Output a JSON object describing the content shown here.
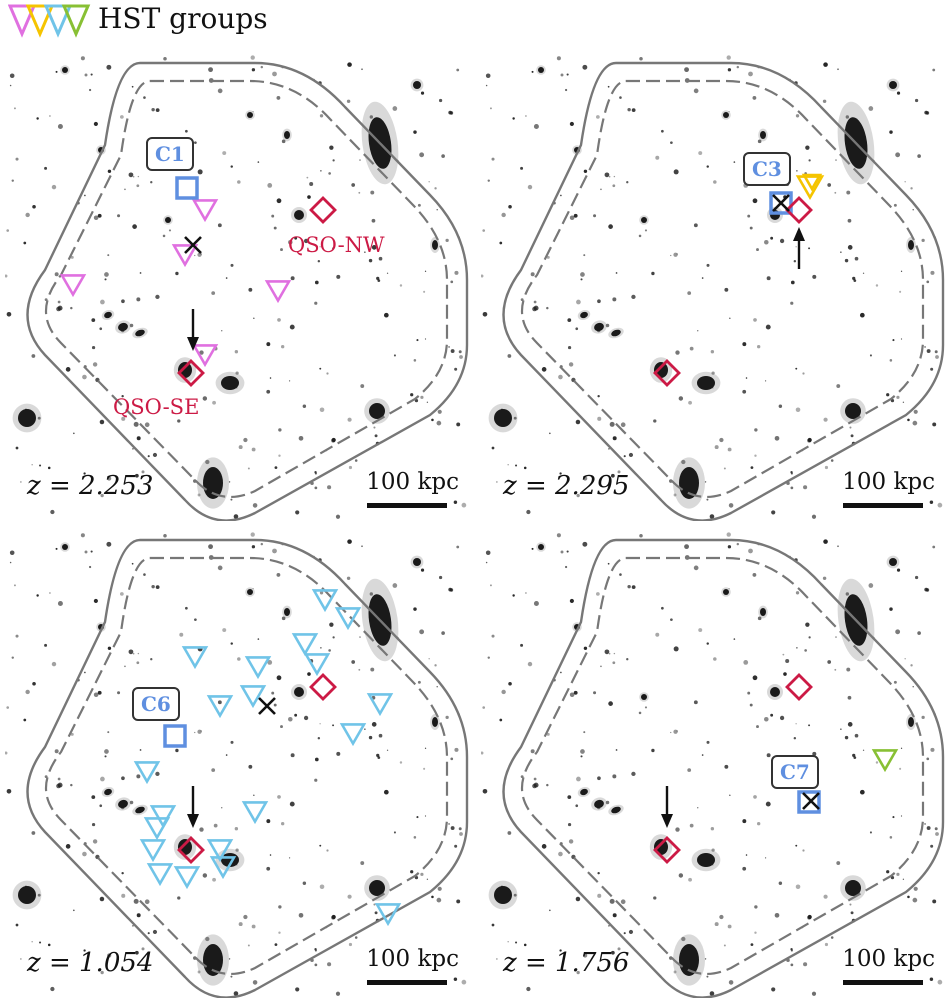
{
  "legend": {
    "title": "HST groups",
    "colors": [
      "#e070e0",
      "#f5c400",
      "#70c4e8",
      "#88c034"
    ]
  },
  "colors": {
    "qso": "#cc1a45",
    "cluster_box": "#5f8fe0",
    "marker": "#111111",
    "contour": "#777777",
    "galaxy": "#1a1a1a"
  },
  "panels": [
    {
      "redshift": "z = 2.253",
      "scale_label": "100 kpc",
      "cluster_label": "C1",
      "group_color": "#e070e0",
      "qso_labels": [
        "QSO-NW",
        "QSO-SE"
      ],
      "icons": [
        "cross-icon",
        "arrow-down-icon"
      ]
    },
    {
      "redshift": "z = 2.295",
      "scale_label": "100 kpc",
      "cluster_label": "C3",
      "group_color": "#f5c400",
      "icons": [
        "cross-icon",
        "arrow-up-icon"
      ]
    },
    {
      "redshift": "z = 1.054",
      "scale_label": "100 kpc",
      "cluster_label": "C6",
      "group_color": "#70c4e8",
      "icons": [
        "cross-icon",
        "arrow-down-icon"
      ]
    },
    {
      "redshift": "z = 1.756",
      "scale_label": "100 kpc",
      "cluster_label": "C7",
      "group_color": "#88c034",
      "icons": [
        "cross-icon",
        "arrow-down-icon"
      ]
    }
  ]
}
